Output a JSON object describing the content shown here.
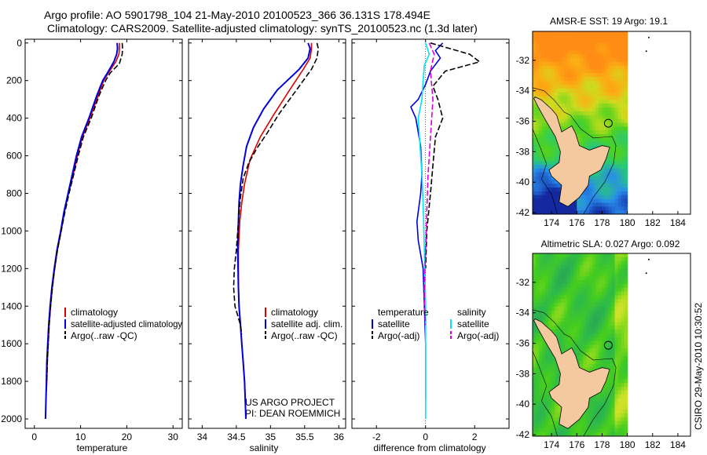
{
  "header": {
    "line1": "Argo profile: AO 5901798_104 21-May-2010 20100523_366 36.131S 178.494E",
    "line2": "Climatology: CARS2009. Satellite-adjusted climatology: synTS_20100523.nc (1.3d later)"
  },
  "footer": {
    "project": "US ARGO PROJECT",
    "pi": "PI: DEAN ROEMMICH",
    "stamp": "CSIRO 29-May-2010 10:30:52"
  },
  "colors": {
    "climatology": "#dd0000",
    "satellite": "#0000dd",
    "argo": "#000000",
    "satellite_light": "#00e5ee",
    "argo_adj": "#dd00dd",
    "land": "#f5c9a0",
    "data_marker": "#000000"
  },
  "chart_data": [
    {
      "type": "line",
      "id": "temperature",
      "xlabel": "temperature",
      "ylabel": "",
      "xlim": [
        -2,
        32
      ],
      "ylim": [
        2050,
        -20
      ],
      "y_reversed": true,
      "xticks": [
        0,
        10,
        20,
        30
      ],
      "yticks": [
        0,
        200,
        400,
        600,
        800,
        1000,
        1200,
        1400,
        1600,
        1800,
        2000
      ],
      "grid": false,
      "legend": {
        "placement": "lower-middle",
        "entries": [
          "climatology",
          "satellite-adjusted climatology",
          "Argo(..raw -QC)"
        ]
      },
      "series": [
        {
          "name": "climatology",
          "color_key": "climatology",
          "dash": "solid",
          "x": [
            18.4,
            18.4,
            18.3,
            17.6,
            16.0,
            15.0,
            13.8,
            12.0,
            10.4,
            9.3,
            8.4,
            7.4,
            6.5,
            5.8,
            5.0,
            4.4,
            3.9,
            3.5,
            3.2,
            3.0,
            2.8,
            2.7,
            2.6
          ],
          "y": [
            0,
            30,
            60,
            100,
            160,
            200,
            280,
            400,
            500,
            600,
            700,
            800,
            900,
            1000,
            1100,
            1200,
            1300,
            1400,
            1500,
            1600,
            1700,
            1800,
            1850
          ]
        },
        {
          "name": "satellite-adjusted climatology",
          "color_key": "satellite",
          "dash": "solid",
          "x": [
            17.9,
            18.0,
            17.8,
            17.2,
            15.8,
            14.8,
            13.5,
            11.8,
            10.2,
            9.1,
            8.2,
            7.3,
            6.4,
            5.7,
            4.9,
            4.3,
            3.8,
            3.4,
            3.1,
            2.9,
            2.7,
            2.6,
            2.5,
            2.4
          ],
          "y": [
            0,
            30,
            60,
            100,
            160,
            200,
            280,
            400,
            500,
            600,
            700,
            800,
            900,
            1000,
            1100,
            1200,
            1300,
            1400,
            1500,
            1600,
            1700,
            1800,
            1900,
            2000
          ]
        },
        {
          "name": "Argo(..raw -QC)",
          "color_key": "argo",
          "dash": "dashed",
          "x": [
            19.0,
            19.1,
            19.0,
            18.4,
            16.4,
            15.4,
            14.0,
            12.3,
            10.6,
            9.5,
            8.5,
            7.5,
            6.6,
            5.8,
            5.0,
            4.4,
            3.9,
            3.5,
            3.2,
            3.0,
            2.8,
            2.7
          ],
          "y": [
            0,
            30,
            60,
            110,
            160,
            200,
            280,
            400,
            500,
            600,
            700,
            800,
            900,
            1000,
            1100,
            1200,
            1300,
            1400,
            1500,
            1600,
            1700,
            1800
          ]
        }
      ]
    },
    {
      "type": "line",
      "id": "salinity",
      "xlabel": "salinity",
      "ylabel": "",
      "xlim": [
        33.8,
        36.1
      ],
      "ylim": [
        2050,
        -20
      ],
      "y_reversed": true,
      "xticks": [
        34,
        34.5,
        35,
        35.5,
        36
      ],
      "grid": false,
      "legend": {
        "placement": "lower-middle",
        "entries": [
          "climatology",
          "satellite adj. clim.",
          "Argo(..raw -QC)"
        ]
      },
      "series": [
        {
          "name": "climatology",
          "color_key": "climatology",
          "dash": "solid",
          "x": [
            35.6,
            35.6,
            35.58,
            35.48,
            35.28,
            35.05,
            34.85,
            34.7,
            34.62,
            34.58,
            34.55,
            34.53,
            34.53,
            34.53,
            34.54,
            34.56,
            34.58,
            34.6,
            34.62,
            34.63
          ],
          "y": [
            0,
            30,
            80,
            140,
            250,
            380,
            500,
            620,
            750,
            850,
            950,
            1100,
            1200,
            1300,
            1400,
            1500,
            1600,
            1700,
            1800,
            1900
          ]
        },
        {
          "name": "satellite adj. clim.",
          "color_key": "satellite",
          "dash": "solid",
          "x": [
            35.55,
            35.58,
            35.55,
            35.42,
            35.1,
            34.9,
            34.75,
            34.65,
            34.6,
            34.56,
            34.54,
            34.53,
            34.52,
            34.53,
            34.54,
            34.56,
            34.58,
            34.6,
            34.62,
            34.63,
            34.64
          ],
          "y": [
            0,
            30,
            80,
            140,
            250,
            350,
            450,
            550,
            650,
            750,
            850,
            950,
            1100,
            1300,
            1400,
            1500,
            1600,
            1700,
            1800,
            1900,
            2000
          ]
        },
        {
          "name": "Argo(..raw -QC)",
          "color_key": "argo",
          "dash": "dashed",
          "x": [
            35.68,
            35.7,
            35.68,
            35.6,
            35.38,
            35.12,
            34.95,
            34.8,
            34.68,
            34.6,
            34.56,
            34.53,
            34.5,
            34.47,
            34.46,
            34.48,
            34.52,
            34.56,
            34.58
          ],
          "y": [
            0,
            30,
            80,
            140,
            250,
            380,
            480,
            560,
            640,
            720,
            820,
            950,
            1100,
            1200,
            1300,
            1400,
            1450,
            1500,
            1550
          ]
        }
      ]
    },
    {
      "type": "line",
      "id": "difference",
      "xlabel": "difference from climatology",
      "ylabel": "",
      "xlim": [
        -3,
        3.4
      ],
      "ylim": [
        2050,
        -20
      ],
      "y_reversed": true,
      "xticks": [
        -2,
        0,
        2
      ],
      "zero_line": true,
      "grid": false,
      "legend": {
        "placement": "lower",
        "entries": [
          "temperature",
          "satellite",
          "Argo(-adj)",
          "salinity",
          "satellite",
          "Argo(-adj)"
        ]
      },
      "series": [
        {
          "name": "satellite",
          "group": "temperature",
          "color_key": "satellite",
          "dash": "solid",
          "x": [
            0.7,
            0.4,
            0.6,
            0.2,
            0.0,
            -0.3,
            -0.6,
            -0.4,
            -0.2,
            -0.15,
            -0.2,
            -0.35,
            -0.3,
            -0.1,
            -0.05,
            0.0,
            0.0
          ],
          "y": [
            0,
            40,
            80,
            150,
            220,
            300,
            340,
            400,
            550,
            700,
            800,
            950,
            1050,
            1200,
            1400,
            1600,
            1900
          ]
        },
        {
          "name": "Argo(-adj)",
          "group": "temperature",
          "color_key": "argo",
          "dash": "dashed",
          "x": [
            0.2,
            1.8,
            2.2,
            0.8,
            0.3,
            0.5,
            0.7,
            0.4,
            0.3,
            0.2,
            0.05,
            0.0
          ],
          "y": [
            0,
            60,
            100,
            150,
            230,
            300,
            400,
            500,
            650,
            800,
            1000,
            1200
          ]
        },
        {
          "name": "satellite",
          "group": "salinity",
          "color_key": "satellite_light",
          "dash": "solid",
          "x": [
            0.0,
            0.15,
            -0.05,
            -0.1,
            -0.15,
            -0.3,
            -0.25,
            -0.2,
            -0.15,
            -0.1,
            -0.05,
            0.0,
            0.0
          ],
          "y": [
            0,
            60,
            120,
            200,
            300,
            400,
            500,
            600,
            700,
            850,
            1100,
            1400,
            2000
          ]
        },
        {
          "name": "Argo(-adj)",
          "group": "salinity",
          "color_key": "argo_adj",
          "dash": "dashed",
          "x": [
            0.15,
            0.35,
            0.2,
            0.3,
            0.2,
            0.1,
            0.05,
            0.0,
            -0.05,
            -0.05,
            0.0
          ],
          "y": [
            0,
            60,
            150,
            300,
            500,
            700,
            900,
            1100,
            1300,
            1400,
            1500
          ]
        }
      ]
    },
    {
      "type": "heatmap",
      "id": "sst-map",
      "title": "AMSR-E SST: 19 Argo: 19.1",
      "xticks": [
        174,
        176,
        178,
        180,
        182,
        184
      ],
      "yticks": [
        -32,
        -34,
        -36,
        -38,
        -40,
        -42
      ],
      "xlim": [
        172.5,
        185
      ],
      "ylim": [
        -42.1,
        -30.1
      ],
      "float_position": {
        "lon": 178.494,
        "lat": -36.131
      }
    },
    {
      "type": "heatmap",
      "id": "sla-map",
      "title": "Altimetric SLA: 0.027 Argo: 0.092",
      "xticks": [
        174,
        176,
        178,
        180,
        182,
        184
      ],
      "yticks": [
        -32,
        -34,
        -36,
        -38,
        -40,
        -42
      ],
      "xlim": [
        172.5,
        185
      ],
      "ylim": [
        -42.1,
        -30.1
      ],
      "float_position": {
        "lon": 178.494,
        "lat": -36.131
      }
    }
  ]
}
